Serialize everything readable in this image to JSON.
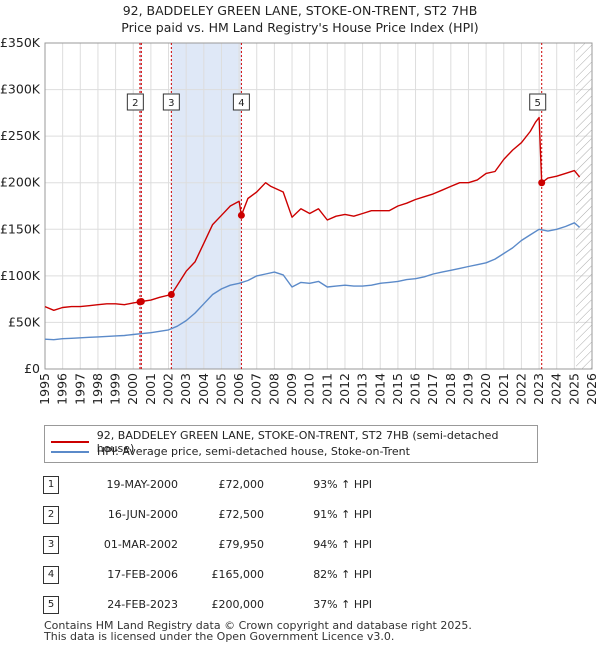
{
  "title": {
    "line1": "92, BADDELEY GREEN LANE, STOKE-ON-TRENT, ST2 7HB",
    "line2": "Price paid vs. HM Land Registry's House Price Index (HPI)"
  },
  "colors": {
    "property": "#cc0000",
    "hpi": "#5b8ac9",
    "shade": "#dfe8f7",
    "grid": "#dddddd",
    "hatch": "#999999"
  },
  "chart_data": {
    "type": "line",
    "title": "92, BADDELEY GREEN LANE, STOKE-ON-TRENT, ST2 7HB — Price paid vs. HM Land Registry's House Price Index (HPI)",
    "xlabel": "",
    "ylabel": "",
    "xlim": [
      1995,
      2026
    ],
    "ylim": [
      0,
      350000
    ],
    "x_ticks": [
      "1995",
      "1996",
      "1997",
      "1998",
      "1999",
      "2000",
      "2001",
      "2002",
      "2003",
      "2004",
      "2005",
      "2006",
      "2007",
      "2008",
      "2009",
      "2010",
      "2011",
      "2012",
      "2013",
      "2014",
      "2015",
      "2016",
      "2017",
      "2018",
      "2019",
      "2020",
      "2021",
      "2022",
      "2023",
      "2024",
      "2025",
      "2026"
    ],
    "y_ticks": [
      {
        "value": 0,
        "label": "£0"
      },
      {
        "value": 50000,
        "label": "£50K"
      },
      {
        "value": 100000,
        "label": "£100K"
      },
      {
        "value": 150000,
        "label": "£150K"
      },
      {
        "value": 200000,
        "label": "£200K"
      },
      {
        "value": 250000,
        "label": "£250K"
      },
      {
        "value": 300000,
        "label": "£300K"
      },
      {
        "value": 350000,
        "label": "£350K"
      }
    ],
    "shaded_spans": [
      [
        2000.38,
        2000.46
      ],
      [
        2002.16,
        2006.13
      ]
    ],
    "forecast_from": 2025.1,
    "series": [
      {
        "name": "92, BADDELEY GREEN LANE, STOKE-ON-TRENT, ST2 7HB (semi-detached house)",
        "color": "#cc0000",
        "x": [
          1995.0,
          1995.5,
          1996.0,
          1996.5,
          1997.0,
          1997.5,
          1998.0,
          1998.5,
          1999.0,
          1999.5,
          2000.0,
          2000.38,
          2000.46,
          2001.0,
          2001.5,
          2002.16,
          2002.5,
          2003.0,
          2003.5,
          2004.0,
          2004.5,
          2005.0,
          2005.5,
          2006.0,
          2006.13,
          2006.5,
          2007.0,
          2007.5,
          2007.8,
          2008.5,
          2009.0,
          2009.5,
          2010.0,
          2010.5,
          2011.0,
          2011.5,
          2012.0,
          2012.5,
          2013.0,
          2013.5,
          2014.0,
          2014.5,
          2015.0,
          2015.5,
          2016.0,
          2016.5,
          2017.0,
          2017.5,
          2018.0,
          2018.5,
          2019.0,
          2019.5,
          2020.0,
          2020.5,
          2021.0,
          2021.5,
          2022.0,
          2022.5,
          2022.8,
          2023.0,
          2023.15,
          2023.5,
          2024.0,
          2024.5,
          2025.0,
          2025.3
        ],
        "values": [
          67000,
          63000,
          66000,
          67000,
          67000,
          68000,
          69000,
          70000,
          70000,
          69000,
          71000,
          72000,
          72500,
          74000,
          77000,
          79950,
          90000,
          105000,
          115000,
          135000,
          155000,
          165000,
          175000,
          180000,
          165000,
          183000,
          190000,
          200000,
          196000,
          190000,
          163000,
          172000,
          167000,
          172000,
          160000,
          164000,
          166000,
          164000,
          167000,
          170000,
          170000,
          170000,
          175000,
          178000,
          182000,
          185000,
          188000,
          192000,
          196000,
          200000,
          200000,
          203000,
          210000,
          212000,
          225000,
          235000,
          243000,
          255000,
          265000,
          270000,
          200000,
          205000,
          207000,
          210000,
          213000,
          206000
        ]
      },
      {
        "name": "HPI: Average price, semi-detached house, Stoke-on-Trent",
        "color": "#5b8ac9",
        "x": [
          1995.0,
          1995.5,
          1996.0,
          1996.5,
          1997.0,
          1997.5,
          1998.0,
          1998.5,
          1999.0,
          1999.5,
          2000.0,
          2000.5,
          2001.0,
          2001.5,
          2002.0,
          2002.5,
          2003.0,
          2003.5,
          2004.0,
          2004.5,
          2005.0,
          2005.5,
          2006.0,
          2006.5,
          2007.0,
          2007.5,
          2008.0,
          2008.5,
          2009.0,
          2009.5,
          2010.0,
          2010.5,
          2011.0,
          2011.5,
          2012.0,
          2012.5,
          2013.0,
          2013.5,
          2014.0,
          2014.5,
          2015.0,
          2015.5,
          2016.0,
          2016.5,
          2017.0,
          2017.5,
          2018.0,
          2018.5,
          2019.0,
          2019.5,
          2020.0,
          2020.5,
          2021.0,
          2021.5,
          2022.0,
          2022.5,
          2023.0,
          2023.5,
          2024.0,
          2024.5,
          2025.0,
          2025.3
        ],
        "values": [
          32000,
          31500,
          32500,
          33000,
          33500,
          34000,
          34500,
          35000,
          35500,
          36000,
          37000,
          38000,
          39000,
          40500,
          42000,
          46000,
          52000,
          60000,
          70000,
          80000,
          86000,
          90000,
          92000,
          95000,
          100000,
          102000,
          104000,
          101000,
          88000,
          93000,
          92000,
          94000,
          88000,
          89000,
          90000,
          89000,
          89000,
          90000,
          92000,
          93000,
          94000,
          96000,
          97000,
          99000,
          102000,
          104000,
          106000,
          108000,
          110000,
          112000,
          114000,
          118000,
          124000,
          130000,
          138000,
          144000,
          150000,
          148000,
          150000,
          153000,
          157000,
          152000
        ]
      }
    ],
    "sales": [
      {
        "id": "1",
        "x": 2000.38,
        "price": 72000
      },
      {
        "id": "2",
        "x": 2000.46,
        "price": 72500
      },
      {
        "id": "3",
        "x": 2002.16,
        "price": 79950
      },
      {
        "id": "4",
        "x": 2006.13,
        "price": 165000
      },
      {
        "id": "5",
        "x": 2023.15,
        "price": 200000
      }
    ],
    "chart_labels": [
      "2",
      "3",
      "4",
      "5"
    ]
  },
  "legend": {
    "property": "92, BADDELEY GREEN LANE, STOKE-ON-TRENT, ST2 7HB (semi-detached house)",
    "hpi": "HPI: Average price, semi-detached house, Stoke-on-Trent"
  },
  "sales_table": [
    {
      "num": "1",
      "date": "19-MAY-2000",
      "price": "£72,000",
      "pct": "93% ↑ HPI"
    },
    {
      "num": "2",
      "date": "16-JUN-2000",
      "price": "£72,500",
      "pct": "91% ↑ HPI"
    },
    {
      "num": "3",
      "date": "01-MAR-2002",
      "price": "£79,950",
      "pct": "94% ↑ HPI"
    },
    {
      "num": "4",
      "date": "17-FEB-2006",
      "price": "£165,000",
      "pct": "82% ↑ HPI"
    },
    {
      "num": "5",
      "date": "24-FEB-2023",
      "price": "£200,000",
      "pct": "37% ↑ HPI"
    }
  ],
  "footer": {
    "line1": "Contains HM Land Registry data © Crown copyright and database right 2025.",
    "line2": "This data is licensed under the Open Government Licence v3.0."
  }
}
